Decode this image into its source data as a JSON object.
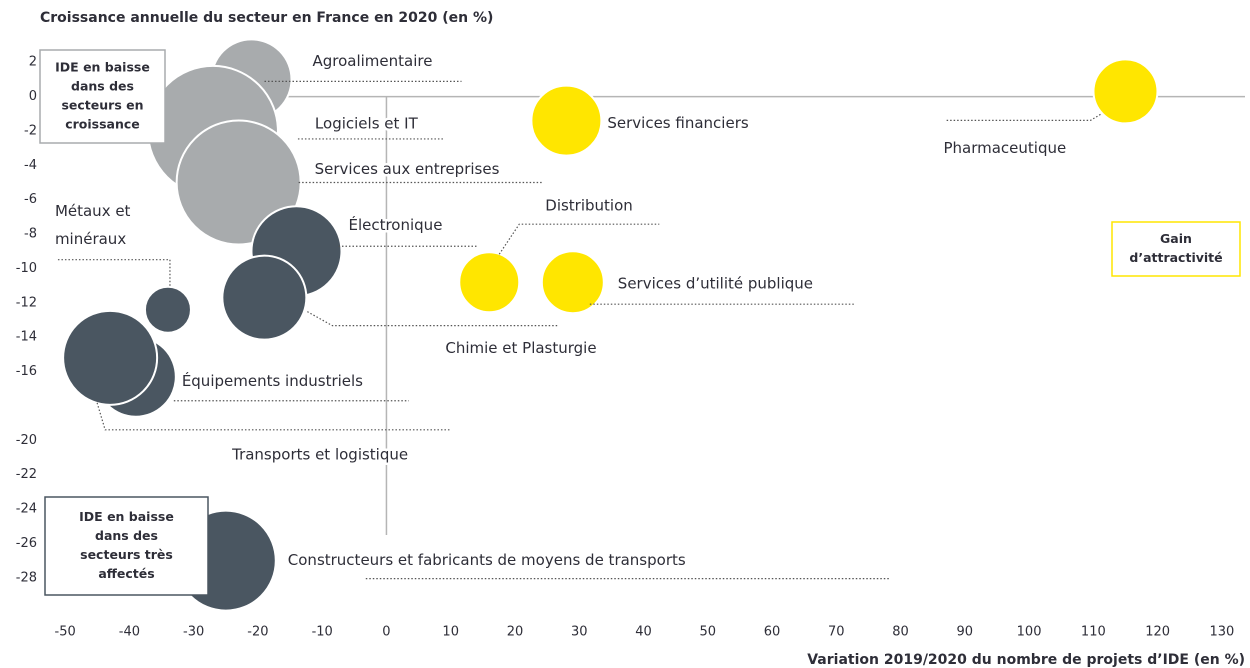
{
  "chart_data": {
    "type": "bubble",
    "title": "Croissance annuelle du secteur en France en 2020 (en %)",
    "x_label": "Variation 2019/2020 du nombre de projets d’IDE (en %)",
    "xlim": [
      -55,
      135
    ],
    "xticks": [
      -50,
      -40,
      -30,
      -20,
      -10,
      0,
      10,
      20,
      30,
      40,
      50,
      60,
      70,
      80,
      90,
      100,
      110,
      120,
      130
    ],
    "ylim": [
      -29,
      3
    ],
    "yticks": [
      2,
      0,
      -2,
      -4,
      -6,
      -8,
      -10,
      -12,
      -14,
      -16,
      -20,
      -22,
      -24,
      -26,
      -28
    ],
    "points": [
      {
        "label": [
          "Agroalimentaire"
        ],
        "x": -21,
        "y": 1,
        "size": 40,
        "color": "#a8abad"
      },
      {
        "label": [
          "Logiciels et IT"
        ],
        "x": -27,
        "y": -2,
        "size": 65,
        "color": "#a8abad"
      },
      {
        "label": [
          "Services aux entreprises"
        ],
        "x": -23,
        "y": -5,
        "size": 62,
        "color": "#a8abad"
      },
      {
        "label": [
          "Électronique"
        ],
        "x": -14,
        "y": -9,
        "size": 45,
        "color": "#4a5661"
      },
      {
        "label": [
          "Chimie et Plasturgie"
        ],
        "x": -19,
        "y": -11.7,
        "size": 42,
        "color": "#4a5661"
      },
      {
        "label": [
          "Métaux et",
          "minéraux"
        ],
        "x": -34,
        "y": -12.4,
        "size": 23,
        "color": "#4a5661"
      },
      {
        "label": [
          "Équipements industriels"
        ],
        "x": -39,
        "y": -16.3,
        "size": 40,
        "color": "#4a5661"
      },
      {
        "label": [
          "Transports et logistique"
        ],
        "x": -43,
        "y": -15.2,
        "size": 47,
        "color": "#4a5661"
      },
      {
        "label": [
          "Constructeurs et fabricants de moyens de transports"
        ],
        "x": -25,
        "y": -27,
        "size": 50,
        "color": "#4a5661"
      },
      {
        "label": [
          "Services financiers"
        ],
        "x": 28,
        "y": -1.4,
        "size": 35,
        "color": "#ffe600"
      },
      {
        "label": [
          "Pharmaceutique"
        ],
        "x": 115,
        "y": 0.3,
        "size": 32,
        "color": "#ffe600"
      },
      {
        "label": [
          "Distribution"
        ],
        "x": 16,
        "y": -10.8,
        "size": 30,
        "color": "#ffe600"
      },
      {
        "label": [
          "Services d’utilité publique"
        ],
        "x": 29,
        "y": -10.8,
        "size": 31,
        "color": "#ffe600"
      }
    ],
    "annotations": [
      {
        "lines": [
          "IDE en baisse",
          "dans des",
          "secteurs en",
          "croissance"
        ],
        "color": "#a8abad"
      },
      {
        "lines": [
          "IDE en baisse",
          "dans des",
          "secteurs très",
          "affectés"
        ],
        "color": "#4a5661"
      },
      {
        "lines": [
          "Gain",
          "d’attractivité"
        ],
        "color": "#ffe600"
      }
    ]
  }
}
